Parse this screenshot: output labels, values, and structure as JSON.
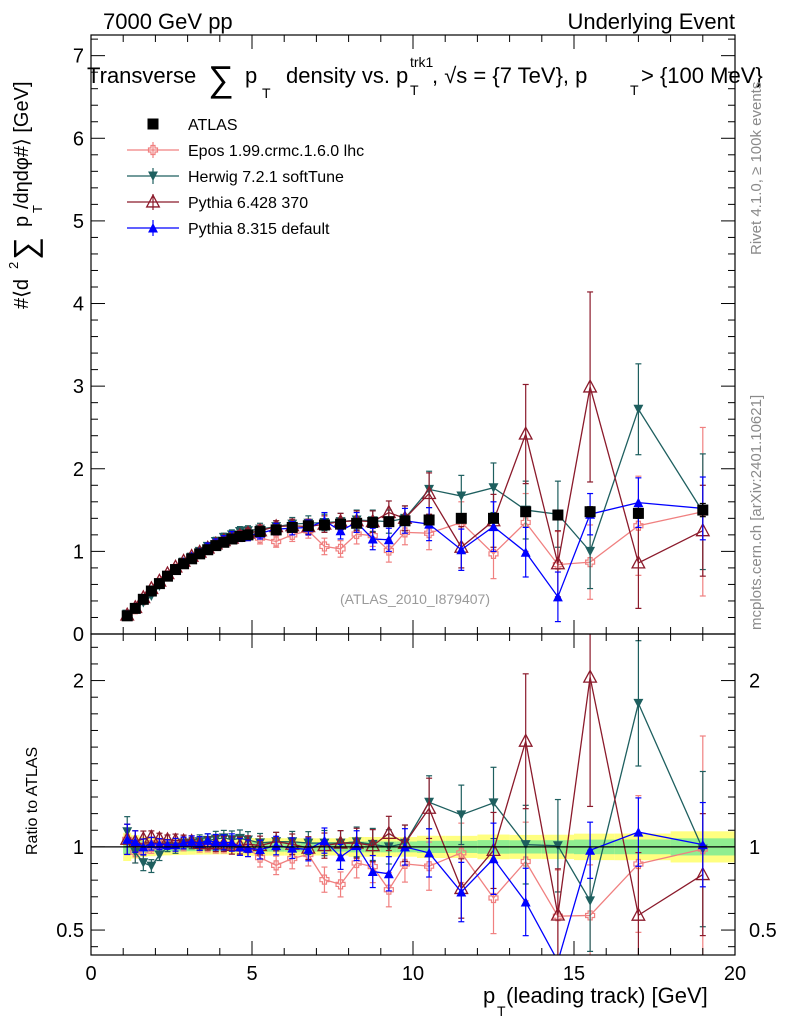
{
  "header": {
    "left": "7000 GeV pp",
    "right": "Underlying Event"
  },
  "side_labels": {
    "top": "Rivet 4.1.0, ≥ 100k events",
    "bottom": "mcplots.cern.ch [arXiv:2401.10621]"
  },
  "chart_data": {
    "type": "scatter",
    "title": "Transverse ∑ pT density vs. pT^trk1, √s = {7 TeV}, pT > {100 MeV}",
    "title_parts": {
      "a": "Transverse",
      "sum": "∑",
      "p": "p",
      "t": "T",
      "b": "density vs. p",
      "sup": "trk1",
      "c": ", √s = {7 TeV}, p",
      "d": " > {100 MeV}"
    },
    "analysis_id": "(ATLAS_2010_I879407)",
    "xlabel": "pT (leading track) [GeV]",
    "xlabel_parts": {
      "p": "p",
      "t": "T",
      "rest": " (leading track) [GeV]"
    },
    "ylabel_main": "#⟨d² ∑ pT /dηdφ#⟩ [GeV]",
    "ylabel_main_parts": {
      "a": "#⟨d",
      "two": "2",
      "sum": "∑",
      "p": "p",
      "t": "T",
      "b": " /dηdφ#⟩ [GeV]"
    },
    "ylabel_ratio": "Ratio to ATLAS",
    "xlim": [
      0,
      20
    ],
    "ylim_main": [
      0,
      7.25
    ],
    "ylim_ratio": [
      0.35,
      2.28
    ],
    "x_ticks": [
      0,
      5,
      10,
      15,
      20
    ],
    "y_ticks_main": [
      0,
      1,
      2,
      3,
      4,
      5,
      6,
      7
    ],
    "y_ticks_ratio": [
      0.5,
      1,
      2
    ],
    "x": [
      1.125,
      1.375,
      1.625,
      1.875,
      2.125,
      2.375,
      2.625,
      2.875,
      3.125,
      3.375,
      3.625,
      3.875,
      4.125,
      4.375,
      4.625,
      4.875,
      5.25,
      5.75,
      6.25,
      6.75,
      7.25,
      7.75,
      8.25,
      8.75,
      9.25,
      9.75,
      10.5,
      11.5,
      12.5,
      13.5,
      14.5,
      15.5,
      17.0,
      19.0
    ],
    "series": [
      {
        "name": "ATLAS",
        "color": "#000000",
        "marker": "square",
        "values": [
          0.22,
          0.31,
          0.42,
          0.52,
          0.61,
          0.7,
          0.78,
          0.85,
          0.91,
          0.97,
          1.02,
          1.07,
          1.11,
          1.15,
          1.18,
          1.2,
          1.24,
          1.26,
          1.29,
          1.31,
          1.32,
          1.33,
          1.34,
          1.35,
          1.36,
          1.37,
          1.38,
          1.4,
          1.4,
          1.48,
          1.44,
          1.48,
          1.46,
          1.5
        ],
        "errors": [
          0.01,
          0.01,
          0.01,
          0.01,
          0.01,
          0.01,
          0.01,
          0.01,
          0.01,
          0.01,
          0.01,
          0.01,
          0.01,
          0.01,
          0.02,
          0.02,
          0.02,
          0.02,
          0.02,
          0.02,
          0.02,
          0.02,
          0.03,
          0.03,
          0.03,
          0.03,
          0.04,
          0.04,
          0.05,
          0.05,
          0.05,
          0.06,
          0.06,
          0.08
        ]
      },
      {
        "name": "Epos 1.99.crmc.1.6.0 lhc",
        "color": "#f08080",
        "marker": "cross",
        "values": [
          0.23,
          0.3,
          0.41,
          0.52,
          0.62,
          0.71,
          0.79,
          0.86,
          0.93,
          0.98,
          1.03,
          1.08,
          1.12,
          1.16,
          1.18,
          1.19,
          1.16,
          1.12,
          1.2,
          1.25,
          1.06,
          1.03,
          1.21,
          1.19,
          1.01,
          1.23,
          1.22,
          1.35,
          0.97,
          1.35,
          0.84,
          0.87,
          1.31,
          1.48
        ],
        "errors": [
          0.02,
          0.02,
          0.02,
          0.02,
          0.02,
          0.02,
          0.03,
          0.03,
          0.03,
          0.04,
          0.04,
          0.05,
          0.05,
          0.06,
          0.06,
          0.06,
          0.07,
          0.07,
          0.08,
          0.09,
          0.1,
          0.1,
          0.12,
          0.13,
          0.14,
          0.15,
          0.2,
          0.25,
          0.3,
          0.35,
          0.4,
          0.45,
          0.6,
          1.02
        ]
      },
      {
        "name": "Herwig 7.2.1 softTune",
        "color": "#1e5f5f",
        "marker": "triangle-down",
        "values": [
          0.24,
          0.3,
          0.38,
          0.46,
          0.58,
          0.7,
          0.78,
          0.87,
          0.93,
          1.0,
          1.06,
          1.12,
          1.17,
          1.2,
          1.24,
          1.25,
          1.27,
          1.3,
          1.33,
          1.34,
          1.35,
          1.36,
          1.38,
          1.37,
          1.36,
          1.4,
          1.75,
          1.67,
          1.77,
          1.5,
          1.45,
          1.0,
          2.72,
          1.48
        ],
        "errors": [
          0.02,
          0.02,
          0.02,
          0.02,
          0.02,
          0.02,
          0.03,
          0.03,
          0.03,
          0.04,
          0.04,
          0.05,
          0.05,
          0.06,
          0.06,
          0.06,
          0.07,
          0.07,
          0.08,
          0.09,
          0.1,
          0.1,
          0.12,
          0.13,
          0.14,
          0.15,
          0.22,
          0.25,
          0.3,
          0.35,
          0.4,
          0.45,
          0.55,
          0.7
        ]
      },
      {
        "name": "Pythia 6.428 370",
        "color": "#8b1a2b",
        "marker": "triangle-open",
        "values": [
          0.23,
          0.32,
          0.44,
          0.55,
          0.64,
          0.73,
          0.81,
          0.88,
          0.94,
          0.99,
          1.04,
          1.09,
          1.13,
          1.16,
          1.19,
          1.22,
          1.25,
          1.3,
          1.31,
          1.3,
          1.33,
          1.36,
          1.37,
          1.36,
          1.47,
          1.4,
          1.7,
          1.05,
          1.37,
          2.42,
          0.85,
          2.99,
          0.86,
          1.25
        ],
        "errors": [
          0.02,
          0.02,
          0.02,
          0.02,
          0.02,
          0.02,
          0.03,
          0.03,
          0.03,
          0.04,
          0.04,
          0.05,
          0.05,
          0.06,
          0.06,
          0.06,
          0.07,
          0.07,
          0.08,
          0.09,
          0.1,
          0.1,
          0.12,
          0.13,
          0.14,
          0.15,
          0.25,
          0.25,
          0.32,
          0.6,
          0.4,
          1.15,
          0.55,
          0.55
        ]
      },
      {
        "name": "Pythia 8.315 default",
        "color": "#0000ff",
        "marker": "triangle-up",
        "values": [
          0.23,
          0.32,
          0.42,
          0.53,
          0.62,
          0.71,
          0.79,
          0.87,
          0.94,
          0.99,
          1.06,
          1.1,
          1.14,
          1.18,
          1.18,
          1.19,
          1.22,
          1.27,
          1.28,
          1.29,
          1.37,
          1.25,
          1.35,
          1.15,
          1.14,
          1.37,
          1.33,
          1.02,
          1.3,
          0.99,
          0.45,
          1.45,
          1.59,
          1.52
        ],
        "errors": [
          0.02,
          0.02,
          0.02,
          0.02,
          0.02,
          0.02,
          0.03,
          0.03,
          0.03,
          0.04,
          0.04,
          0.05,
          0.05,
          0.06,
          0.06,
          0.06,
          0.07,
          0.07,
          0.08,
          0.09,
          0.1,
          0.1,
          0.12,
          0.13,
          0.14,
          0.15,
          0.2,
          0.25,
          0.3,
          0.3,
          0.3,
          0.25,
          0.3,
          0.38
        ]
      }
    ],
    "ratio_band": {
      "note": "ATLAS uncertainty bands in ratio panel",
      "inner_color": "#90ee90",
      "outer_color": "#ffff80"
    }
  }
}
